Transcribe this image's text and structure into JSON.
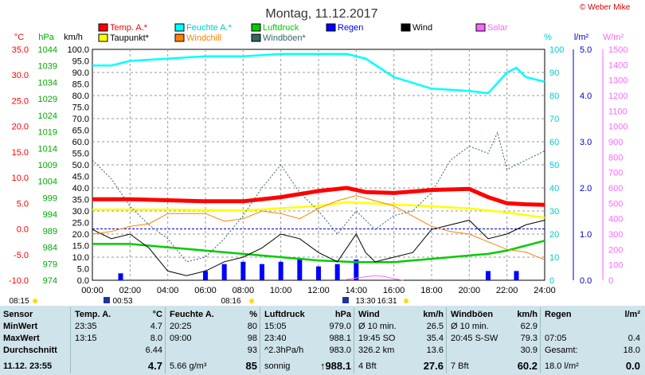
{
  "title": "Montag, 11.12.2017",
  "copyright": "© Weber Mike",
  "legend": [
    {
      "label": "Temp. A.*",
      "color": "#ff0000"
    },
    {
      "label": "Feuchte A.*",
      "color": "#00ffff"
    },
    {
      "label": "Luftdruck",
      "color": "#00cc00"
    },
    {
      "label": "Regen",
      "color": "#0000ff"
    },
    {
      "label": "Wind",
      "color": "#000000"
    },
    {
      "label": "Solar",
      "color": "#ff66ff"
    },
    {
      "label": "Taupunkt*",
      "color": "#ffff00"
    },
    {
      "label": "Windchill",
      "color": "#ff8000"
    },
    {
      "label": "Windböen*",
      "color": "#336666"
    }
  ],
  "axis_units": {
    "temp": "°C",
    "pressure": "hPa",
    "wind": "km/h",
    "humidity": "%",
    "rain": "l/m²",
    "solar": "W/m²"
  },
  "axes": {
    "temp_ticks": [
      "35.0",
      "30.0",
      "25.0",
      "20.0",
      "15.0",
      "10.0",
      "5.0",
      "0.0",
      "-5.0",
      "-10.0"
    ],
    "pressure_ticks": [
      "1044",
      "1039",
      "1034",
      "1029",
      "1024",
      "1019",
      "1014",
      "1009",
      "1004",
      "999",
      "994",
      "989",
      "984",
      "979",
      "974"
    ],
    "wind_ticks": [
      "100.0",
      "95.0",
      "90.0",
      "85.0",
      "80.0",
      "75.0",
      "70.0",
      "65.0",
      "60.0",
      "55.0",
      "50.0",
      "45.0",
      "40.0",
      "35.0",
      "30.0",
      "25.0",
      "20.0",
      "15.0",
      "10.0",
      "5.0",
      "0.0"
    ],
    "humidity_ticks": [
      "100",
      "90",
      "80",
      "70",
      "60",
      "50",
      "40",
      "30",
      "20",
      "10",
      "0"
    ],
    "rain_ticks": [
      "5.0",
      "4.0",
      "3.0",
      "2.0",
      "1.0",
      "0.0"
    ],
    "solar_ticks": [
      "1500",
      "1400",
      "1300",
      "1200",
      "1100",
      "1000",
      "900",
      "800",
      "700",
      "600",
      "500",
      "400",
      "300",
      "200",
      "100",
      "0"
    ],
    "time_ticks": [
      "00:00",
      "02:00",
      "04:00",
      "06:00",
      "08:00",
      "10:00",
      "12:00",
      "14:00",
      "16:00",
      "18:00",
      "20:00",
      "22:00",
      "24:00"
    ]
  },
  "sun_events": {
    "sunrise": "08:15",
    "sunset": "16:31",
    "moonset": "00:53",
    "moonrise": "13:30",
    "solar_noon": "08:16"
  },
  "chart_data": {
    "type": "line",
    "x_unit": "hour",
    "xlim": [
      0,
      24
    ],
    "series": [
      {
        "name": "Temp. A.*",
        "axis": "temp",
        "color": "#ff0000",
        "x": [
          0,
          2,
          4,
          6,
          8,
          10,
          12,
          13.5,
          14.5,
          16,
          18,
          20,
          21,
          22,
          23,
          24
        ],
        "y": [
          5.8,
          5.8,
          5.6,
          5.4,
          5.4,
          6.2,
          7.4,
          8.0,
          7.2,
          7.0,
          7.6,
          7.8,
          6.2,
          5.0,
          4.8,
          4.7
        ]
      },
      {
        "name": "Feuchte A.*",
        "axis": "humidity",
        "color": "#00ffff",
        "x": [
          0,
          1,
          2,
          4,
          6,
          8,
          10,
          12,
          13.5,
          14.5,
          16,
          18,
          20,
          21,
          22,
          22.5,
          23,
          24
        ],
        "y": [
          93,
          93,
          95,
          96,
          97,
          97,
          98,
          98,
          98,
          96,
          88,
          83,
          82,
          81,
          90,
          92,
          88,
          86
        ]
      },
      {
        "name": "Luftdruck",
        "axis": "pressure",
        "color": "#00cc00",
        "x": [
          0,
          2,
          4,
          6,
          8,
          10,
          12,
          14,
          16,
          18,
          20,
          21,
          22,
          23,
          24
        ],
        "y": [
          985.0,
          985.0,
          984.0,
          983.0,
          982.0,
          981.0,
          980.0,
          979.5,
          979.5,
          980.5,
          981.5,
          982.0,
          983.0,
          984.5,
          986.0
        ]
      },
      {
        "name": "Taupunkt*",
        "axis": "temp",
        "color": "#ffff00",
        "x": [
          0,
          4,
          8,
          12,
          13.5,
          16,
          20,
          22,
          24
        ],
        "y": [
          3.8,
          3.8,
          3.6,
          4.5,
          5.2,
          4.8,
          4.0,
          3.2,
          2.2
        ]
      },
      {
        "name": "Wind",
        "axis": "wind",
        "color": "#000000",
        "x": [
          0,
          1,
          2,
          3,
          4,
          5,
          6,
          7,
          8,
          9,
          10,
          11,
          12,
          13,
          14,
          14.5,
          15,
          16,
          17,
          18,
          19,
          20,
          21,
          22,
          23,
          24
        ],
        "y": [
          22,
          18,
          20,
          14,
          4,
          2,
          4,
          8,
          10,
          14,
          20,
          18,
          12,
          8,
          20,
          12,
          8,
          10,
          12,
          22,
          24,
          26,
          18,
          20,
          24,
          26
        ]
      },
      {
        "name": "Windchill",
        "axis": "temp",
        "color": "#ff8000",
        "x": [
          0,
          1,
          2,
          3,
          4,
          6,
          7,
          8,
          9,
          10,
          11,
          12,
          13,
          14,
          15,
          16,
          17,
          18,
          19,
          20,
          21,
          22,
          23,
          24
        ],
        "y": [
          -1.0,
          -0.5,
          0.5,
          1.0,
          3.0,
          3.0,
          1.5,
          2.0,
          3.5,
          3.0,
          2.0,
          4.0,
          5.5,
          6.5,
          5.5,
          4.5,
          2.5,
          0.5,
          -0.5,
          -1.0,
          -2.5,
          -4.0,
          -4.5,
          -6.0
        ]
      },
      {
        "name": "Windböen*",
        "axis": "wind",
        "color": "#336666",
        "x": [
          0,
          1,
          2,
          3,
          4,
          5,
          6,
          7,
          8,
          9,
          10,
          11,
          12,
          13,
          14,
          15,
          16,
          17,
          18,
          19,
          20,
          21,
          21.5,
          22,
          23,
          24
        ],
        "y": [
          52,
          44,
          32,
          24,
          18,
          8,
          10,
          18,
          28,
          40,
          50,
          38,
          30,
          20,
          30,
          22,
          28,
          30,
          38,
          52,
          58,
          55,
          64,
          48,
          52,
          56
        ]
      },
      {
        "name": "Regen",
        "axis": "rain",
        "color": "#0000ff",
        "x": [
          1.5,
          6,
          7,
          8,
          9,
          10,
          11,
          12,
          13,
          14,
          21,
          22.5
        ],
        "y": [
          0.15,
          0.2,
          0.35,
          0.4,
          0.35,
          0.4,
          0.45,
          0.3,
          0.35,
          0.45,
          0.2,
          0.2
        ]
      },
      {
        "name": "Solar",
        "axis": "solar",
        "color": "#ff66ff",
        "x": [
          13.5,
          14,
          15,
          15.5,
          16,
          16.5
        ],
        "y": [
          5,
          15,
          30,
          25,
          10,
          0
        ]
      }
    ],
    "reference_lines": [
      {
        "axis": "temp",
        "value": 0.0
      }
    ]
  },
  "stats": {
    "row_labels": [
      "Sensor",
      "MinWert",
      "MaxWert",
      "Durchschnitt",
      "11.12.  23:55"
    ],
    "columns": [
      {
        "name": "Temp. A.",
        "unit": "°C",
        "rows": [
          [
            "23:35",
            "4.7"
          ],
          [
            "13:15",
            "8.0"
          ],
          [
            "",
            "6.44"
          ],
          [
            "",
            "4.7"
          ]
        ]
      },
      {
        "name": "Feuchte A.",
        "unit": "%",
        "rows": [
          [
            "20:25",
            "80"
          ],
          [
            "09:00",
            "98"
          ],
          [
            "",
            "93"
          ],
          [
            "5.66 g/m³",
            "85"
          ]
        ]
      },
      {
        "name": "Luftdruck",
        "unit": "hPa",
        "rows": [
          [
            "15:05",
            "979.0"
          ],
          [
            "23:40",
            "988.1"
          ],
          [
            "^2.3hPa/h",
            "983.0"
          ],
          [
            "sonnig",
            "↑988.1"
          ]
        ]
      },
      {
        "name": "Wind",
        "unit": "km/h",
        "rows": [
          [
            "Ø 10 min.",
            "26.5"
          ],
          [
            "19:45   SO",
            "35.4"
          ],
          [
            "326.2 km",
            "13.6"
          ],
          [
            "4 Bft",
            "27.6"
          ]
        ]
      },
      {
        "name": "Windböen",
        "unit": "km/h",
        "rows": [
          [
            "Ø 10 min.",
            "62.9"
          ],
          [
            "20:45   S-SW",
            "79.3"
          ],
          [
            "",
            "30.9"
          ],
          [
            "7 Bft",
            "60.2"
          ]
        ]
      },
      {
        "name": "Regen",
        "unit": "l/m²",
        "rows": [
          [
            "",
            ""
          ],
          [
            "07:05",
            "0.4"
          ],
          [
            "Gesamt:",
            "18.0"
          ],
          [
            "18.0 l/m²",
            "0.0"
          ]
        ]
      }
    ]
  }
}
